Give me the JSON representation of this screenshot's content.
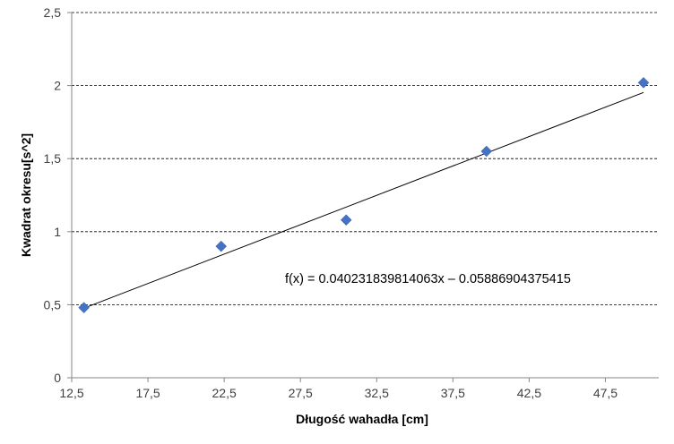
{
  "chart_data": {
    "type": "scatter",
    "xlabel": "Długość wahadła [cm]",
    "ylabel": "Kwadrat okresu[s^2]",
    "xlim": [
      12.5,
      51
    ],
    "ylim": [
      0,
      2.5
    ],
    "x_ticks": [
      "12,5",
      "17,5",
      "22,5",
      "27,5",
      "32,5",
      "37,5",
      "42,5",
      "47,5"
    ],
    "y_ticks": [
      "0",
      "0,5",
      "1",
      "1,5",
      "2",
      "2,5"
    ],
    "x_tick_values": [
      12.5,
      17.5,
      22.5,
      27.5,
      32.5,
      37.5,
      42.5,
      47.5
    ],
    "y_tick_values": [
      0,
      0.5,
      1,
      1.5,
      2,
      2.5
    ],
    "grid": "horizontal dashed",
    "legend": "none",
    "series": [
      {
        "points": [
          {
            "x": 13.3,
            "y": 0.48
          },
          {
            "x": 22.3,
            "y": 0.9
          },
          {
            "x": 30.5,
            "y": 1.08
          },
          {
            "x": 39.7,
            "y": 1.55
          },
          {
            "x": 50.0,
            "y": 2.02
          }
        ],
        "marker": "diamond",
        "color": "#4472C4"
      }
    ],
    "trendline": {
      "slope": 0.040231839814063,
      "intercept": -0.05886904375415,
      "x_range": [
        13.3,
        50.0
      ],
      "color": "#000000",
      "equation": "f(x) = 0.040231839814063x – 0.05886904375415"
    }
  }
}
